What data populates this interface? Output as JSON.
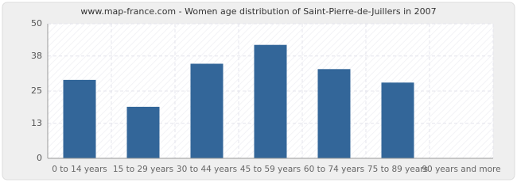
{
  "chart_data": {
    "type": "bar",
    "title": "www.map-france.com - Women age distribution of Saint-Pierre-de-Juillers in 2007",
    "categories": [
      "0 to 14 years",
      "15 to 29 years",
      "30 to 44 years",
      "45 to 59 years",
      "60 to 74 years",
      "75 to 89 years",
      "90 years and more"
    ],
    "values": [
      29,
      19,
      35,
      42,
      33,
      28,
      0
    ],
    "color": "#336699",
    "ylim": [
      0,
      50
    ],
    "yticks": [
      0,
      13,
      25,
      38,
      50
    ],
    "grid": true
  }
}
